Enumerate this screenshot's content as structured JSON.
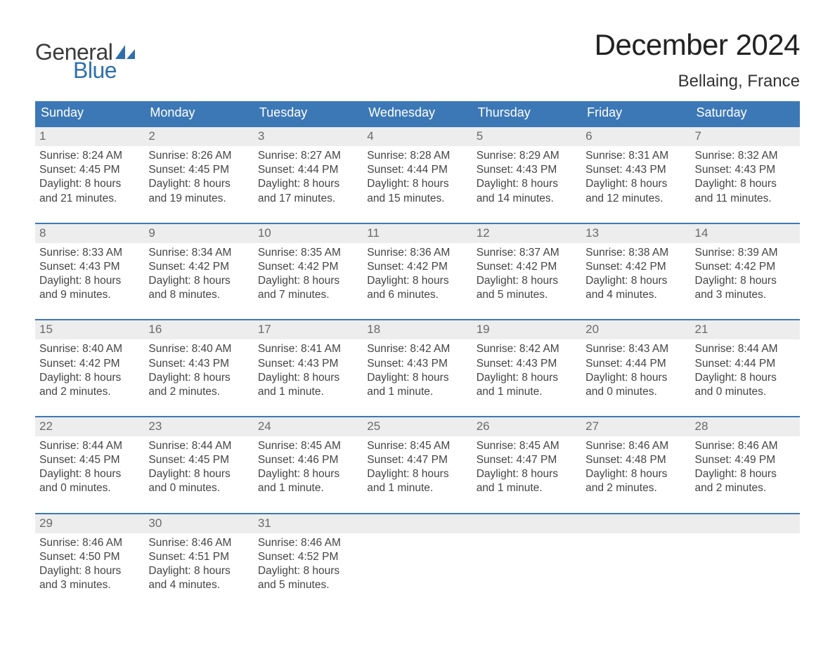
{
  "logo": {
    "line1": "General",
    "line2": "Blue"
  },
  "title": "December 2024",
  "location": "Bellaing, France",
  "colors": {
    "header_bg": "#3d78b6",
    "header_text": "#ffffff",
    "daynum_bg": "#ededed",
    "daynum_text": "#6a6a6a",
    "body_text": "#444444",
    "rule": "#3d78b6",
    "logo_blue": "#2f6fad",
    "background": "#ffffff"
  },
  "day_names": [
    "Sunday",
    "Monday",
    "Tuesday",
    "Wednesday",
    "Thursday",
    "Friday",
    "Saturday"
  ],
  "weeks": [
    [
      {
        "n": "1",
        "sunrise": "Sunrise: 8:24 AM",
        "sunset": "Sunset: 4:45 PM",
        "daylight": "Daylight: 8 hours and 21 minutes."
      },
      {
        "n": "2",
        "sunrise": "Sunrise: 8:26 AM",
        "sunset": "Sunset: 4:45 PM",
        "daylight": "Daylight: 8 hours and 19 minutes."
      },
      {
        "n": "3",
        "sunrise": "Sunrise: 8:27 AM",
        "sunset": "Sunset: 4:44 PM",
        "daylight": "Daylight: 8 hours and 17 minutes."
      },
      {
        "n": "4",
        "sunrise": "Sunrise: 8:28 AM",
        "sunset": "Sunset: 4:44 PM",
        "daylight": "Daylight: 8 hours and 15 minutes."
      },
      {
        "n": "5",
        "sunrise": "Sunrise: 8:29 AM",
        "sunset": "Sunset: 4:43 PM",
        "daylight": "Daylight: 8 hours and 14 minutes."
      },
      {
        "n": "6",
        "sunrise": "Sunrise: 8:31 AM",
        "sunset": "Sunset: 4:43 PM",
        "daylight": "Daylight: 8 hours and 12 minutes."
      },
      {
        "n": "7",
        "sunrise": "Sunrise: 8:32 AM",
        "sunset": "Sunset: 4:43 PM",
        "daylight": "Daylight: 8 hours and 11 minutes."
      }
    ],
    [
      {
        "n": "8",
        "sunrise": "Sunrise: 8:33 AM",
        "sunset": "Sunset: 4:43 PM",
        "daylight": "Daylight: 8 hours and 9 minutes."
      },
      {
        "n": "9",
        "sunrise": "Sunrise: 8:34 AM",
        "sunset": "Sunset: 4:42 PM",
        "daylight": "Daylight: 8 hours and 8 minutes."
      },
      {
        "n": "10",
        "sunrise": "Sunrise: 8:35 AM",
        "sunset": "Sunset: 4:42 PM",
        "daylight": "Daylight: 8 hours and 7 minutes."
      },
      {
        "n": "11",
        "sunrise": "Sunrise: 8:36 AM",
        "sunset": "Sunset: 4:42 PM",
        "daylight": "Daylight: 8 hours and 6 minutes."
      },
      {
        "n": "12",
        "sunrise": "Sunrise: 8:37 AM",
        "sunset": "Sunset: 4:42 PM",
        "daylight": "Daylight: 8 hours and 5 minutes."
      },
      {
        "n": "13",
        "sunrise": "Sunrise: 8:38 AM",
        "sunset": "Sunset: 4:42 PM",
        "daylight": "Daylight: 8 hours and 4 minutes."
      },
      {
        "n": "14",
        "sunrise": "Sunrise: 8:39 AM",
        "sunset": "Sunset: 4:42 PM",
        "daylight": "Daylight: 8 hours and 3 minutes."
      }
    ],
    [
      {
        "n": "15",
        "sunrise": "Sunrise: 8:40 AM",
        "sunset": "Sunset: 4:42 PM",
        "daylight": "Daylight: 8 hours and 2 minutes."
      },
      {
        "n": "16",
        "sunrise": "Sunrise: 8:40 AM",
        "sunset": "Sunset: 4:43 PM",
        "daylight": "Daylight: 8 hours and 2 minutes."
      },
      {
        "n": "17",
        "sunrise": "Sunrise: 8:41 AM",
        "sunset": "Sunset: 4:43 PM",
        "daylight": "Daylight: 8 hours and 1 minute."
      },
      {
        "n": "18",
        "sunrise": "Sunrise: 8:42 AM",
        "sunset": "Sunset: 4:43 PM",
        "daylight": "Daylight: 8 hours and 1 minute."
      },
      {
        "n": "19",
        "sunrise": "Sunrise: 8:42 AM",
        "sunset": "Sunset: 4:43 PM",
        "daylight": "Daylight: 8 hours and 1 minute."
      },
      {
        "n": "20",
        "sunrise": "Sunrise: 8:43 AM",
        "sunset": "Sunset: 4:44 PM",
        "daylight": "Daylight: 8 hours and 0 minutes."
      },
      {
        "n": "21",
        "sunrise": "Sunrise: 8:44 AM",
        "sunset": "Sunset: 4:44 PM",
        "daylight": "Daylight: 8 hours and 0 minutes."
      }
    ],
    [
      {
        "n": "22",
        "sunrise": "Sunrise: 8:44 AM",
        "sunset": "Sunset: 4:45 PM",
        "daylight": "Daylight: 8 hours and 0 minutes."
      },
      {
        "n": "23",
        "sunrise": "Sunrise: 8:44 AM",
        "sunset": "Sunset: 4:45 PM",
        "daylight": "Daylight: 8 hours and 0 minutes."
      },
      {
        "n": "24",
        "sunrise": "Sunrise: 8:45 AM",
        "sunset": "Sunset: 4:46 PM",
        "daylight": "Daylight: 8 hours and 1 minute."
      },
      {
        "n": "25",
        "sunrise": "Sunrise: 8:45 AM",
        "sunset": "Sunset: 4:47 PM",
        "daylight": "Daylight: 8 hours and 1 minute."
      },
      {
        "n": "26",
        "sunrise": "Sunrise: 8:45 AM",
        "sunset": "Sunset: 4:47 PM",
        "daylight": "Daylight: 8 hours and 1 minute."
      },
      {
        "n": "27",
        "sunrise": "Sunrise: 8:46 AM",
        "sunset": "Sunset: 4:48 PM",
        "daylight": "Daylight: 8 hours and 2 minutes."
      },
      {
        "n": "28",
        "sunrise": "Sunrise: 8:46 AM",
        "sunset": "Sunset: 4:49 PM",
        "daylight": "Daylight: 8 hours and 2 minutes."
      }
    ],
    [
      {
        "n": "29",
        "sunrise": "Sunrise: 8:46 AM",
        "sunset": "Sunset: 4:50 PM",
        "daylight": "Daylight: 8 hours and 3 minutes."
      },
      {
        "n": "30",
        "sunrise": "Sunrise: 8:46 AM",
        "sunset": "Sunset: 4:51 PM",
        "daylight": "Daylight: 8 hours and 4 minutes."
      },
      {
        "n": "31",
        "sunrise": "Sunrise: 8:46 AM",
        "sunset": "Sunset: 4:52 PM",
        "daylight": "Daylight: 8 hours and 5 minutes."
      },
      {
        "empty": true
      },
      {
        "empty": true
      },
      {
        "empty": true
      },
      {
        "empty": true
      }
    ]
  ]
}
